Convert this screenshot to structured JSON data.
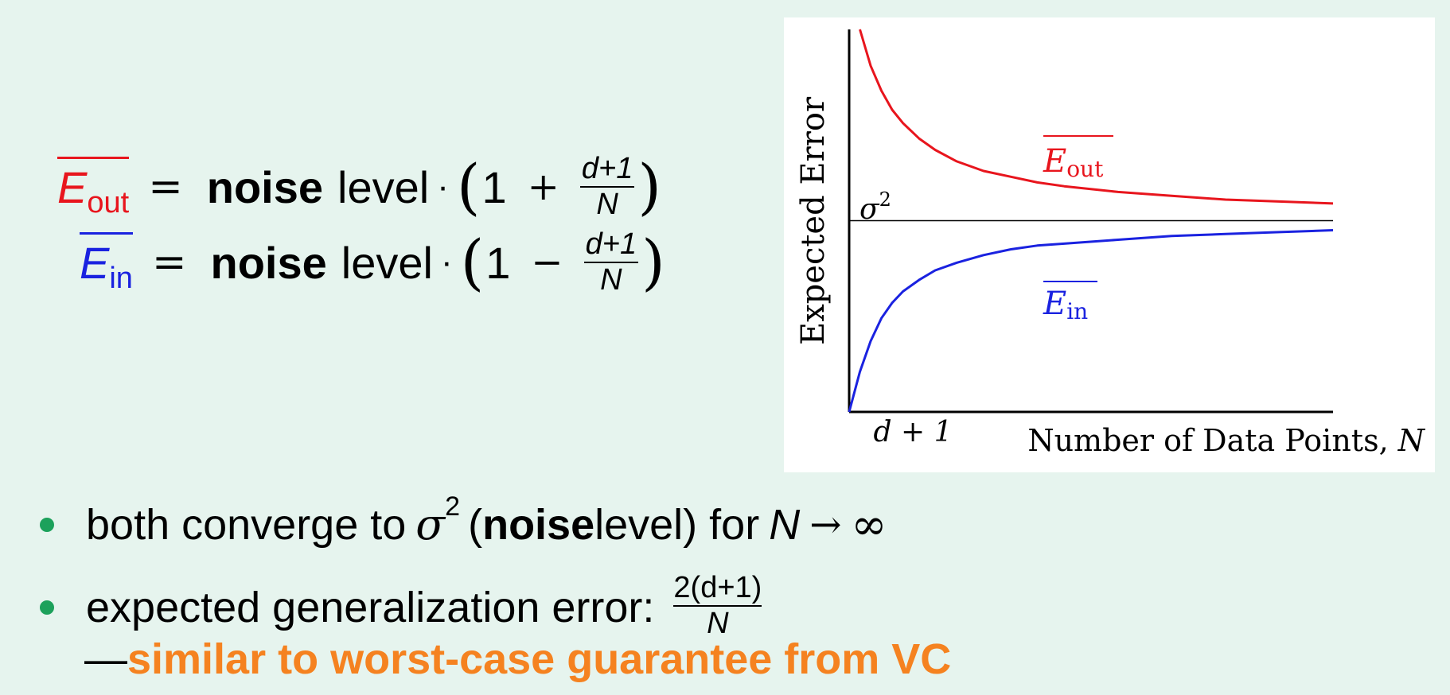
{
  "equations": {
    "out": {
      "symbol": "E",
      "subscript": "out",
      "equals": "=",
      "bold_word": "noise",
      "word": "level",
      "dot": "·",
      "open_paren": "(",
      "one": "1",
      "operator": "+",
      "numerator": "d+1",
      "denominator": "N",
      "close_paren": ")",
      "color": "#e8151d"
    },
    "in": {
      "symbol": "E",
      "subscript": "in",
      "equals": "=",
      "bold_word": "noise",
      "word": "level",
      "dot": "·",
      "open_paren": "(",
      "one": "1",
      "operator": "−",
      "numerator": "d+1",
      "denominator": "N",
      "close_paren": ")",
      "color": "#1a22e0"
    }
  },
  "chart_data": {
    "type": "line",
    "ylabel": "Expected Error",
    "xlabel": "Number of Data Points, ",
    "xlabel_var": "N",
    "x_start_label": "d + 1",
    "noise_label": "σ",
    "noise_label_sup": "2",
    "grid": false,
    "x_range": [
      1,
      10
    ],
    "y_range": [
      0,
      2
    ],
    "noise_level": 1,
    "series": [
      {
        "name_symbol": "E",
        "name_sub": "out",
        "color": "#e8151d",
        "x": [
          1.2,
          1.4,
          1.6,
          1.8,
          2.0,
          2.3,
          2.6,
          3.0,
          3.5,
          4.0,
          4.5,
          5.0,
          6.0,
          7.0,
          8.0,
          9.0,
          10.0
        ],
        "y": [
          2.0,
          1.81,
          1.68,
          1.58,
          1.51,
          1.43,
          1.37,
          1.31,
          1.26,
          1.23,
          1.2,
          1.18,
          1.15,
          1.13,
          1.11,
          1.1,
          1.09
        ]
      },
      {
        "name_symbol": "E",
        "name_sub": "in",
        "color": "#1a22e0",
        "x": [
          1.0,
          1.2,
          1.4,
          1.6,
          1.8,
          2.0,
          2.3,
          2.6,
          3.0,
          3.5,
          4.0,
          4.5,
          5.0,
          6.0,
          7.0,
          8.0,
          9.0,
          10.0
        ],
        "y": [
          0.0,
          0.21,
          0.37,
          0.49,
          0.57,
          0.63,
          0.69,
          0.74,
          0.78,
          0.82,
          0.85,
          0.87,
          0.88,
          0.9,
          0.92,
          0.93,
          0.94,
          0.95
        ]
      }
    ]
  },
  "bullets": {
    "b1": {
      "text1": "both converge to",
      "sigma": "σ",
      "sup": "2",
      "paren_open": "(",
      "bold": "noise",
      "text2": " level) for",
      "n": "N",
      "arrow": "→",
      "inf": "∞"
    },
    "b2": {
      "text": "expected generalization error:",
      "numerator": "2(d+1)",
      "denominator": "N"
    },
    "b3": {
      "dash": "—",
      "highlight": "similar to worst-case guarantee from VC"
    }
  }
}
